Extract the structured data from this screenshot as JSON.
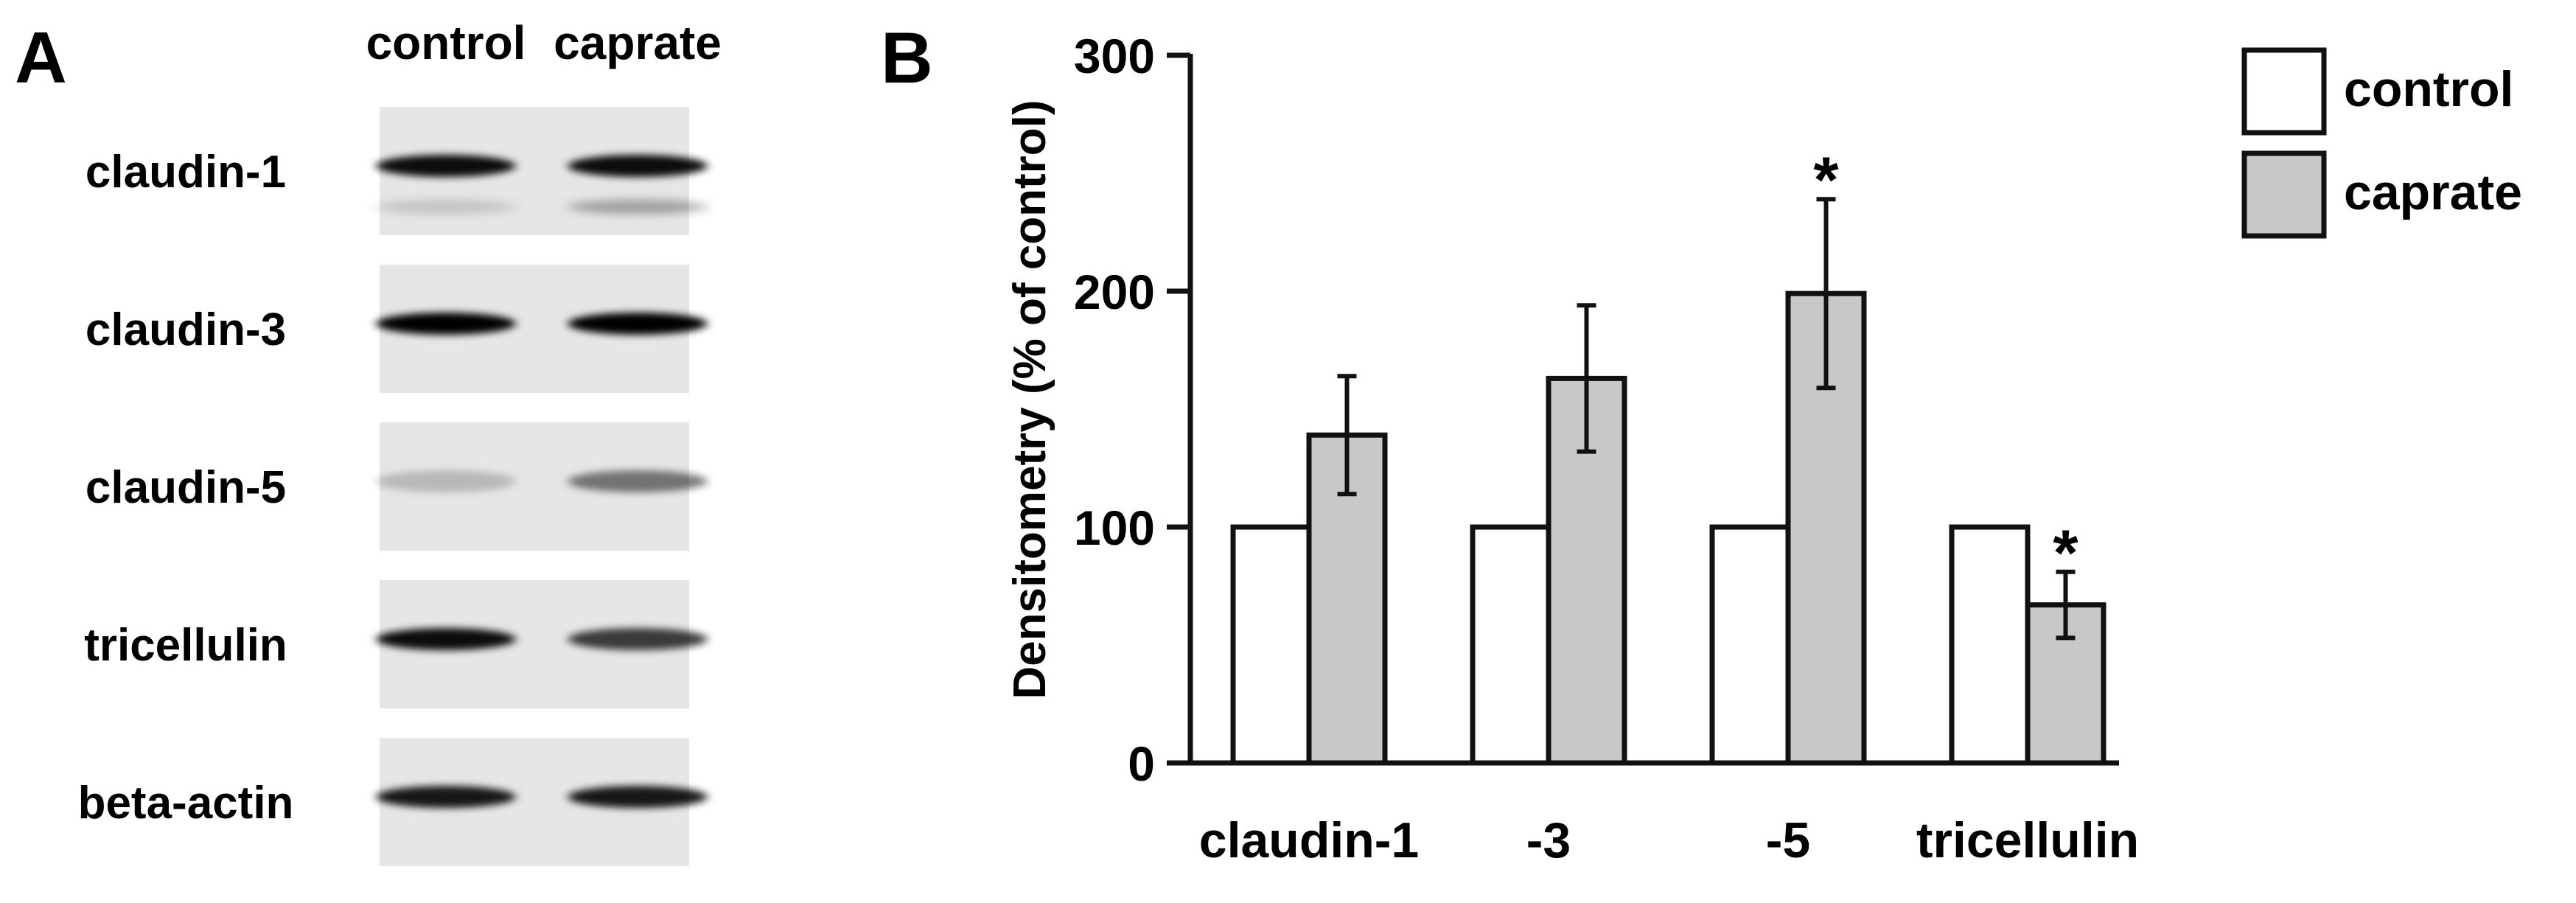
{
  "panel_a": {
    "letter": "A",
    "column_labels": [
      "control",
      "caprate"
    ],
    "blots": [
      {
        "label": "claudin-1",
        "band_intensity": [
          0.95,
          0.95
        ],
        "faint_lower_band": [
          0.15,
          0.3
        ]
      },
      {
        "label": "claudin-3",
        "band_intensity": [
          1.0,
          1.0
        ],
        "faint_lower_band": [
          0,
          0
        ]
      },
      {
        "label": "claudin-5",
        "band_intensity": [
          0.2,
          0.5
        ],
        "faint_lower_band": [
          0,
          0
        ]
      },
      {
        "label": "tricellulin",
        "band_intensity": [
          0.95,
          0.75
        ],
        "faint_lower_band": [
          0,
          0
        ]
      },
      {
        "label": "beta-actin",
        "band_intensity": [
          0.9,
          0.9
        ],
        "faint_lower_band": [
          0,
          0
        ]
      }
    ]
  },
  "panel_b": {
    "letter": "B",
    "colors": {
      "control": "#ffffff",
      "caprate": "#c8c8c8",
      "stroke": "#111111"
    },
    "chart_data": {
      "type": "bar",
      "categories": [
        "claudin-1",
        "-3",
        "-5",
        "tricellulin"
      ],
      "series": [
        {
          "name": "control",
          "values": [
            100,
            100,
            100,
            100
          ],
          "errors": [
            0,
            0,
            0,
            0
          ]
        },
        {
          "name": "caprate",
          "values": [
            139,
            163,
            199,
            67
          ],
          "errors": [
            25,
            31,
            40,
            14
          ]
        }
      ],
      "significance": [
        "",
        "",
        "*",
        "*"
      ],
      "ylabel": "Densitometry (% of control)",
      "ylim": [
        0,
        300
      ],
      "yticks": [
        0,
        100,
        200,
        300
      ],
      "grid": false,
      "legend_position": "top-right"
    }
  }
}
